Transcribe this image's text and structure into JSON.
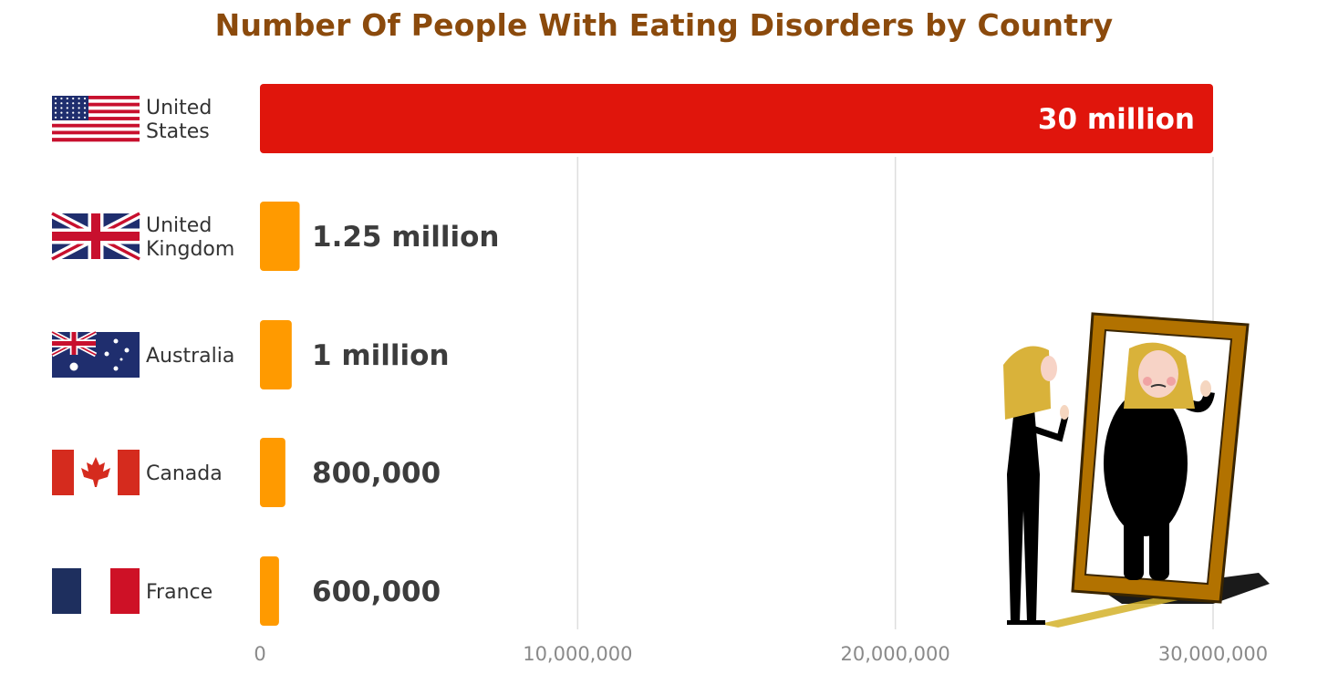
{
  "chart_data": {
    "type": "bar",
    "orientation": "horizontal",
    "title": "Number Of People With Eating Disorders by Country",
    "categories": [
      {
        "lines": [
          "United",
          "States"
        ],
        "flag": "us-flag"
      },
      {
        "lines": [
          "United",
          "Kingdom"
        ],
        "flag": "uk-flag"
      },
      {
        "lines": [
          "Australia"
        ],
        "flag": "australia-flag"
      },
      {
        "lines": [
          "Canada"
        ],
        "flag": "canada-flag"
      },
      {
        "lines": [
          "France"
        ],
        "flag": "france-flag"
      }
    ],
    "values": [
      30000000,
      1250000,
      1000000,
      800000,
      600000
    ],
    "data_labels": [
      "30 million",
      "1.25 million",
      "1 million",
      "800,000",
      "600,000"
    ],
    "xlim": [
      0,
      30000000
    ],
    "ticks": [
      0,
      10000000,
      20000000,
      30000000
    ],
    "tick_labels": [
      "0",
      "10,000,000",
      "20,000,000",
      "30,000,000"
    ],
    "grid": "vertical",
    "colors": {
      "title": "#8b4a0c",
      "highlight_bar": "#e0150c",
      "bar": "#ff9a00",
      "value_text": "#3c3c3c",
      "highlight_value_text": "#ffffff",
      "grid": "#dedede"
    },
    "illustration": "woman-looking-in-mirror-illustration"
  }
}
